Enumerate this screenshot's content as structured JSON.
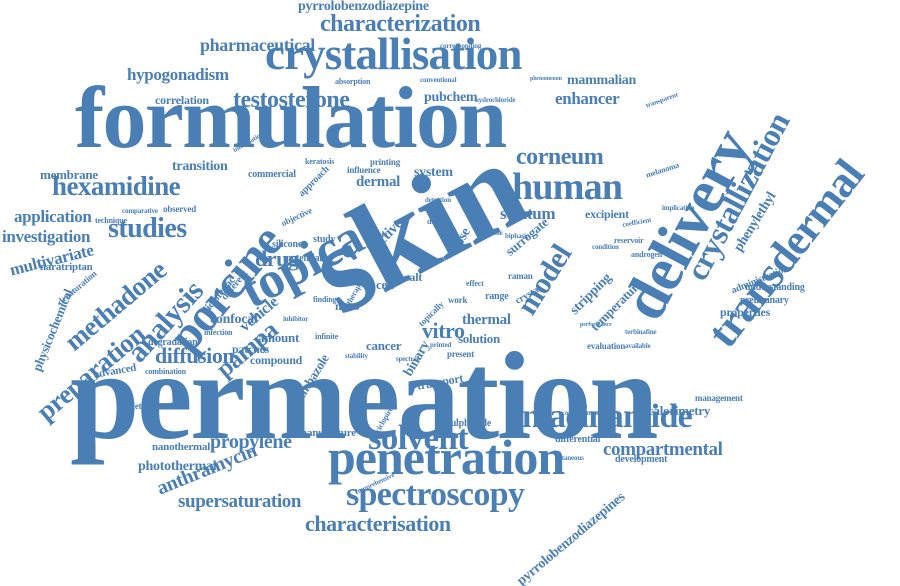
{
  "cloud": {
    "color": "#4a7fb5",
    "words": [
      "permeation",
      "skin",
      "formulation",
      "delivery",
      "topical",
      "transdermal",
      "crystallisation",
      "penetration",
      "solvent",
      "spectroscopy",
      "niacinamide",
      "human",
      "crystallization",
      "porcine",
      "hexamidine",
      "studies",
      "analysis",
      "preparation",
      "methadone",
      "characterization",
      "characterisation",
      "testosterone",
      "model",
      "drug",
      "pampa",
      "diffusion",
      "compartmental",
      "propylene",
      "anthramycin",
      "supersaturation",
      "pharmaceutical",
      "pyrrolobenzodiazepine",
      "pyrrolobenzodiazepines",
      "hypogonadism",
      "corneum",
      "stratum",
      "vitro",
      "thermal",
      "application",
      "investigation",
      "multivariate",
      "membrane",
      "transition",
      "enhancer",
      "pubchem",
      "correlation",
      "mammalian",
      "phenylethyl",
      "physicochemical",
      "vehicle",
      "solution",
      "calorimetry",
      "photothermal",
      "properties",
      "surrogate",
      "excipient",
      "stripping",
      "temperature",
      "system",
      "dermal",
      "active",
      "cell",
      "salt",
      "naratriptan",
      "degradation",
      "advanced",
      "confocal",
      "amount",
      "patches",
      "nano",
      "cancer",
      "transport",
      "climbazole",
      "manufacture",
      "nanothermal",
      "determined",
      "sulphoxide",
      "differential",
      "development",
      "management",
      "administration",
      "understanding",
      "preliminary",
      "approach",
      "commercial",
      "influence",
      "printing",
      "keratosis",
      "observed",
      "silicone",
      "potential",
      "study",
      "range",
      "raman",
      "binary",
      "work",
      "dose",
      "present",
      "absorption",
      "conventional",
      "corresponding",
      "hydrochloride",
      "phenomenon",
      "transparent",
      "melanoma",
      "implication",
      "reservoir",
      "coefficient",
      "androgen",
      "possible",
      "evaluation",
      "terbinafine",
      "comprehensive",
      "compartment",
      "infection",
      "inhibitor",
      "finding",
      "infinite",
      "diclofenac",
      "different",
      "combination",
      "denaturation",
      "technique",
      "comparative",
      "objective",
      "topically",
      "compound",
      "depth",
      "detection",
      "condition",
      "performance",
      "ciclopirox",
      "crystal",
      "simple",
      "biphasic",
      "effect",
      "stability",
      "printed",
      "spectral",
      "therapy",
      "cutaneous",
      "available",
      "information"
    ]
  }
}
